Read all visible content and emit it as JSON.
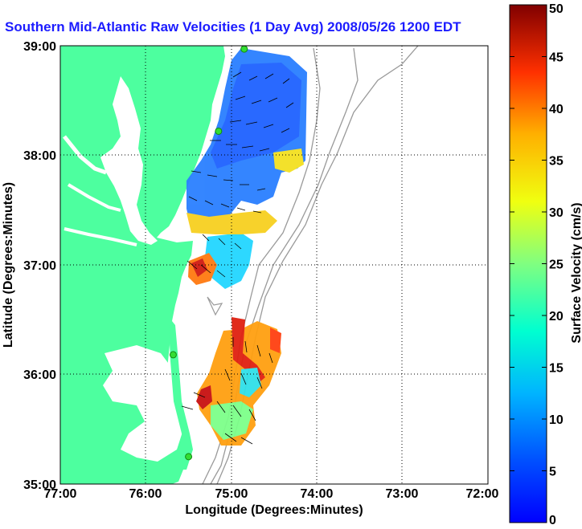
{
  "title": "Southern Mid-Atlantic Raw Velocities (1 Day Avg) 2008/05/26 1200 EDT",
  "colors": {
    "land": "#4dff9f",
    "water": "#ffffff",
    "contour": "#9a9a9a",
    "title": "#1c1cff",
    "station": "#33dd33"
  },
  "chart_data": {
    "type": "heatmap",
    "xlabel": "Longitude (Degrees:Minutes)",
    "ylabel": "Latitude (Degrees:Minutes)",
    "x_ticks": [
      "77:00",
      "76:00",
      "75:00",
      "74:00",
      "73:00",
      "72:00"
    ],
    "y_ticks": [
      "39:00",
      "38:00",
      "37:00",
      "36:00",
      "35:00"
    ],
    "xlim": [
      -77,
      -72
    ],
    "ylim": [
      35,
      39
    ],
    "grid": true,
    "colorbar": {
      "label": "Surface Velocity (cm/s)",
      "ticks": [
        "50",
        "45",
        "40",
        "35",
        "30",
        "25",
        "20",
        "15",
        "10",
        "5",
        "0"
      ],
      "range": [
        0,
        50
      ],
      "colormap": "jet"
    },
    "stations": [
      {
        "lon": -74.85,
        "lat": 38.97
      },
      {
        "lon": -75.15,
        "lat": 38.22
      },
      {
        "lon": -75.68,
        "lat": 36.18
      },
      {
        "lon": -75.5,
        "lat": 35.25
      }
    ]
  }
}
